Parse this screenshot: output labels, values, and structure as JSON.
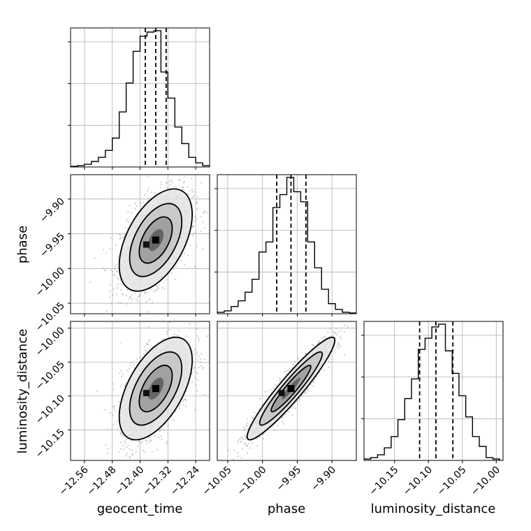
{
  "chart_data": {
    "type": "corner",
    "parameters": [
      "geocent_time",
      "phase",
      "luminosity_distance"
    ],
    "axis_labels": {
      "geocent_time": "geocent_time",
      "phase": "phase",
      "luminosity_distance": "luminosity_distance"
    },
    "ranges": {
      "geocent_time": [
        -12.6,
        -12.2
      ],
      "phase": [
        -10.065,
        -9.865
      ],
      "luminosity_distance": [
        -10.195,
        -9.99
      ]
    },
    "ticks": {
      "geocent_time": [
        {
          "v": -12.56,
          "label": "−12.56"
        },
        {
          "v": -12.48,
          "label": "−12.48"
        },
        {
          "v": -12.4,
          "label": "−12.40"
        },
        {
          "v": -12.32,
          "label": "−12.32"
        },
        {
          "v": -12.24,
          "label": "−12.24"
        }
      ],
      "phase": [
        {
          "v": -10.05,
          "label": "−10.05"
        },
        {
          "v": -10.0,
          "label": "−10.00"
        },
        {
          "v": -9.95,
          "label": "−9.95"
        },
        {
          "v": -9.9,
          "label": "−9.90"
        }
      ],
      "luminosity_distance": [
        {
          "v": -10.15,
          "label": "−10.15"
        },
        {
          "v": -10.1,
          "label": "−10.10"
        },
        {
          "v": -10.05,
          "label": "−10.05"
        },
        {
          "v": -10.0,
          "label": "−10.00"
        }
      ]
    },
    "quantiles": {
      "geocent_time": [
        -12.385,
        -12.355,
        -12.325
      ],
      "phase": [
        -9.9795,
        -9.959,
        -9.9375
      ],
      "luminosity_distance": [
        -10.113,
        -10.089,
        -10.064
      ]
    },
    "histograms": {
      "geocent_time": {
        "edges": [
          -12.6,
          -12.58,
          -12.56,
          -12.54,
          -12.52,
          -12.5,
          -12.48,
          -12.46,
          -12.44,
          -12.42,
          -12.4,
          -12.38,
          -12.36,
          -12.34,
          -12.32,
          -12.3,
          -12.28,
          -12.26,
          -12.24,
          -12.22,
          -12.2
        ],
        "counts": [
          0.5,
          1,
          2,
          4,
          7,
          12,
          21,
          40,
          61,
          84,
          95,
          98,
          99,
          69,
          50,
          29,
          17,
          7,
          3,
          1
        ]
      },
      "phase": {
        "edges": [
          -10.065,
          -10.055,
          -10.045,
          -10.035,
          -10.025,
          -10.015,
          -10.005,
          -9.995,
          -9.985,
          -9.975,
          -9.965,
          -9.955,
          -9.945,
          -9.935,
          -9.925,
          -9.915,
          -9.905,
          -9.895,
          -9.885,
          -9.875,
          -9.865
        ],
        "counts": [
          1,
          2,
          5,
          9,
          15,
          24,
          43,
          50,
          74,
          83,
          95,
          85,
          78,
          50,
          32,
          17,
          7,
          3,
          1,
          0.5
        ]
      },
      "luminosity_distance": {
        "edges": [
          -10.195,
          -10.185,
          -10.175,
          -10.165,
          -10.155,
          -10.145,
          -10.135,
          -10.125,
          -10.115,
          -10.105,
          -10.095,
          -10.085,
          -10.075,
          -10.065,
          -10.055,
          -10.045,
          -10.035,
          -10.025,
          -10.015,
          -10.005,
          -9.995
        ],
        "counts": [
          1,
          2,
          4,
          9,
          17,
          29,
          44,
          58,
          79,
          87,
          95,
          97,
          78,
          62,
          46,
          31,
          17,
          10,
          2,
          1
        ]
      }
    },
    "pairs": [
      {
        "x": "geocent_time",
        "y": "phase",
        "center": [
          -12.355,
          -9.959
        ],
        "sd": [
          0.05,
          0.035
        ],
        "rho": 0.5
      },
      {
        "x": "geocent_time",
        "y": "luminosity_distance",
        "center": [
          -12.355,
          -10.089
        ],
        "sd": [
          0.05,
          0.036
        ],
        "rho": 0.55
      },
      {
        "x": "phase",
        "y": "luminosity_distance",
        "center": [
          -9.959,
          -10.089
        ],
        "sd": [
          0.03,
          0.036
        ],
        "rho": 0.94
      }
    ],
    "grid": true
  }
}
